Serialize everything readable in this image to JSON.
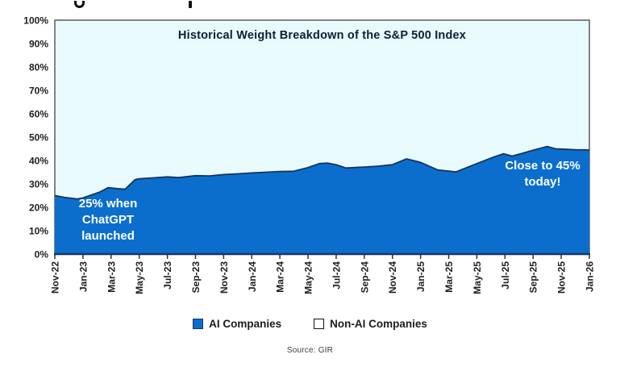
{
  "title_block": {
    "chart_title": "Historical Weight Breakdown of the S&P 500 Index"
  },
  "annotation_left": {
    "lines": [
      "25% when",
      "ChatGPT",
      "launched"
    ]
  },
  "annotation_right": {
    "lines": [
      "Close to 45%",
      "today!"
    ]
  },
  "legend": {
    "items": [
      {
        "label": "AI Companies",
        "swatch_color": "#0b6ecd",
        "swatch_style": "filled"
      },
      {
        "label": "Non-AI Companies",
        "swatch_color": "#ffffff",
        "swatch_style": "outlined"
      }
    ]
  },
  "source": {
    "text": "Source: GIR"
  },
  "colors": {
    "ai_fill": "#0b6ecd",
    "non_ai_fill": "#e9fafd",
    "boundary_line": "#14355c",
    "axis_line": "#17375e",
    "plot_border": "#5b5b5b",
    "label_text": "#1f1f1f",
    "annotation_text": "#ffffff"
  },
  "chart_data": {
    "type": "area",
    "title": "Historical Weight Breakdown of the S&P 500 Index",
    "stacked_to_100_percent": true,
    "grid": false,
    "legend_position": "bottom",
    "ylim": [
      0,
      100
    ],
    "y_tick_labels": [
      "0%",
      "10%",
      "20%",
      "30%",
      "40%",
      "50%",
      "60%",
      "70%",
      "80%",
      "90%",
      "100%"
    ],
    "categories": [
      "Nov-22",
      "Jan-23",
      "Mar-23",
      "May-23",
      "Jul-23",
      "Sep-23",
      "Nov-23",
      "Jan-24",
      "Mar-24",
      "May-24",
      "Jul-24",
      "Sep-24",
      "Nov-24",
      "Jan-25",
      "Mar-25",
      "May-25",
      "Jul-25",
      "Sep-25",
      "Nov-25",
      "Jan-26"
    ],
    "series": [
      {
        "name": "AI Companies",
        "color": "#0b6ecd",
        "values_at_ticks": [
          25,
          24,
          28.5,
          32,
          33,
          33.5,
          34,
          34.5,
          35.5,
          37,
          38.5,
          37.5,
          38.5,
          39.5,
          35.5,
          38.5,
          42.5,
          44.5,
          45,
          44.5
        ]
      },
      {
        "name": "Non-AI Companies",
        "color": "#e9fafd",
        "values_at_ticks": [
          75,
          76,
          71.5,
          68,
          67,
          66.5,
          66,
          65.5,
          64.5,
          63,
          61.5,
          62.5,
          61.5,
          60.5,
          64.5,
          61.5,
          57.5,
          55.5,
          55,
          55.5
        ]
      }
    ],
    "boundary_points": [
      [
        0,
        25
      ],
      [
        0.35,
        24.2
      ],
      [
        0.8,
        23.6
      ],
      [
        1,
        24
      ],
      [
        1.6,
        26.5
      ],
      [
        1.9,
        28.4
      ],
      [
        2.2,
        28
      ],
      [
        2.5,
        27.7
      ],
      [
        2.85,
        31.8
      ],
      [
        3,
        32.2
      ],
      [
        3.5,
        32.6
      ],
      [
        4,
        33
      ],
      [
        4.4,
        32.7
      ],
      [
        5,
        33.5
      ],
      [
        5.5,
        33.4
      ],
      [
        6,
        34
      ],
      [
        6.5,
        34.3
      ],
      [
        7,
        34.7
      ],
      [
        7.5,
        35
      ],
      [
        8,
        35.3
      ],
      [
        8.5,
        35.4
      ],
      [
        9,
        37
      ],
      [
        9.4,
        38.7
      ],
      [
        9.7,
        38.9
      ],
      [
        10,
        38.2
      ],
      [
        10.35,
        36.8
      ],
      [
        10.8,
        37.1
      ],
      [
        11,
        37.2
      ],
      [
        11.5,
        37.6
      ],
      [
        12,
        38.2
      ],
      [
        12.5,
        40.7
      ],
      [
        13,
        39.2
      ],
      [
        13.6,
        36
      ],
      [
        14,
        35.5
      ],
      [
        14.25,
        35.1
      ],
      [
        15,
        38.7
      ],
      [
        15.6,
        41.5
      ],
      [
        15.95,
        42.9
      ],
      [
        16.25,
        41.9
      ],
      [
        16.6,
        43
      ],
      [
        17,
        44.4
      ],
      [
        17.5,
        46
      ],
      [
        17.8,
        45
      ],
      [
        18,
        44.9
      ],
      [
        18.5,
        44.6
      ],
      [
        19,
        44.5
      ]
    ],
    "annotations": [
      {
        "text": "25% when ChatGPT launched",
        "color": "#ffffff",
        "position": "lower-left-inside-area"
      },
      {
        "text": "Close to 45% today!",
        "color": "#ffffff",
        "position": "right-inside-area"
      }
    ]
  }
}
